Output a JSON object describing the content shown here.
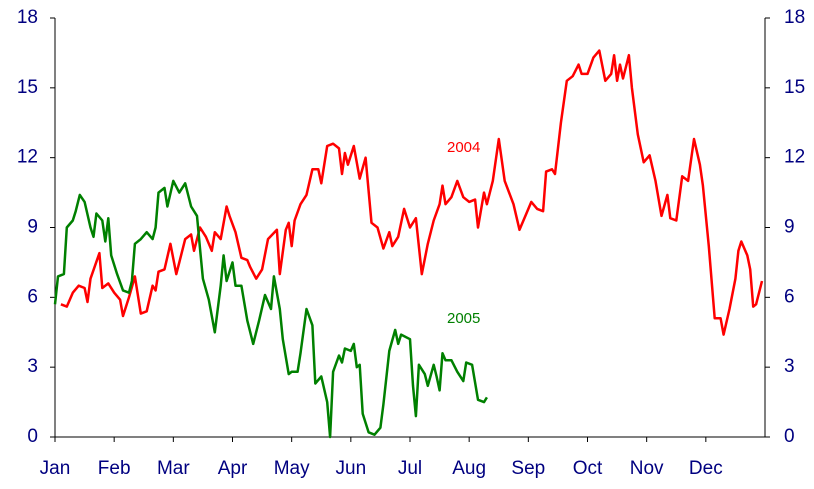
{
  "chart_data": {
    "type": "line",
    "xlim": [
      0,
      12
    ],
    "xticks": [
      {
        "value": 0,
        "label": "Jan"
      },
      {
        "value": 1,
        "label": "Feb"
      },
      {
        "value": 2,
        "label": "Mar"
      },
      {
        "value": 3,
        "label": "Apr"
      },
      {
        "value": 4,
        "label": "May"
      },
      {
        "value": 5,
        "label": "Jun"
      },
      {
        "value": 6,
        "label": "Jul"
      },
      {
        "value": 7,
        "label": "Aug"
      },
      {
        "value": 8,
        "label": "Sep"
      },
      {
        "value": 9,
        "label": "Oct"
      },
      {
        "value": 10,
        "label": "Nov"
      },
      {
        "value": 11,
        "label": "Dec"
      }
    ],
    "ylim": [
      0,
      18
    ],
    "yticks": [
      0,
      3,
      6,
      9,
      12,
      15,
      18
    ],
    "y2lim": [
      0,
      18
    ],
    "y2ticks": [
      0,
      3,
      6,
      9,
      12,
      15,
      18
    ],
    "grid": false,
    "series": [
      {
        "name": "2004",
        "color": "#ff0000",
        "x": [
          0.1,
          0.2,
          0.3,
          0.4,
          0.5,
          0.55,
          0.6,
          0.75,
          0.8,
          0.9,
          1.0,
          1.1,
          1.15,
          1.25,
          1.35,
          1.45,
          1.55,
          1.65,
          1.7,
          1.75,
          1.85,
          1.95,
          2.05,
          2.1,
          2.2,
          2.3,
          2.35,
          2.45,
          2.55,
          2.65,
          2.7,
          2.8,
          2.9,
          2.95,
          3.05,
          3.15,
          3.25,
          3.3,
          3.4,
          3.5,
          3.6,
          3.75,
          3.8,
          3.9,
          3.95,
          4.0,
          4.05,
          4.15,
          4.25,
          4.35,
          4.45,
          4.5,
          4.6,
          4.7,
          4.8,
          4.85,
          4.9,
          4.95,
          5.05,
          5.15,
          5.25,
          5.35,
          5.45,
          5.55,
          5.65,
          5.7,
          5.8,
          5.9,
          6.0,
          6.1,
          6.2,
          6.3,
          6.4,
          6.5,
          6.55,
          6.6,
          6.7,
          6.8,
          6.9,
          7.0,
          7.1,
          7.15,
          7.25,
          7.3,
          7.4,
          7.5,
          7.6,
          7.75,
          7.85,
          7.95,
          8.05,
          8.15,
          8.25,
          8.3,
          8.4,
          8.45,
          8.55,
          8.65,
          8.75,
          8.85,
          8.9,
          9.0,
          9.1,
          9.2,
          9.3,
          9.4,
          9.45,
          9.5,
          9.55,
          9.6,
          9.7,
          9.75,
          9.85,
          9.95,
          10.05,
          10.15,
          10.25,
          10.35,
          10.4,
          10.5,
          10.6,
          10.7,
          10.8,
          10.9,
          10.95,
          11.05,
          11.15,
          11.25,
          11.3,
          11.4,
          11.5,
          11.55,
          11.6,
          11.7,
          11.75,
          11.8,
          11.85,
          11.95
        ],
        "values": [
          5.7,
          5.6,
          6.2,
          6.5,
          6.4,
          5.8,
          6.8,
          7.9,
          6.4,
          6.6,
          6.2,
          5.9,
          5.2,
          6.0,
          6.9,
          5.3,
          5.4,
          6.5,
          6.3,
          7.1,
          7.2,
          8.3,
          7.0,
          7.5,
          8.5,
          8.7,
          8.0,
          9.0,
          8.6,
          8.0,
          8.8,
          8.5,
          9.9,
          9.5,
          8.8,
          7.7,
          7.6,
          7.3,
          6.8,
          7.2,
          8.5,
          8.9,
          7.0,
          8.9,
          9.2,
          8.2,
          9.3,
          10.0,
          10.4,
          11.5,
          11.5,
          10.9,
          12.5,
          12.6,
          12.4,
          11.3,
          12.2,
          11.7,
          12.5,
          11.1,
          12.0,
          9.2,
          9.0,
          8.1,
          8.8,
          8.2,
          8.6,
          9.8,
          9.0,
          9.4,
          7.0,
          8.3,
          9.3,
          10.0,
          10.8,
          10.0,
          10.3,
          11.0,
          10.3,
          10.1,
          10.2,
          9.0,
          10.5,
          10.0,
          11.0,
          12.8,
          11.0,
          10.0,
          8.9,
          9.5,
          10.1,
          9.8,
          9.7,
          11.4,
          11.5,
          11.3,
          13.5,
          15.3,
          15.5,
          16.0,
          15.6,
          15.6,
          16.3,
          16.6,
          15.3,
          15.6,
          16.4,
          15.3,
          16.0,
          15.4,
          16.4,
          15.0,
          13.0,
          11.8,
          12.1,
          11.0,
          9.5,
          10.4,
          9.4,
          9.3,
          11.2,
          11.0,
          12.8,
          11.7,
          10.8,
          8.2,
          5.1,
          5.1,
          4.4,
          5.5,
          6.8,
          8.0,
          8.4,
          7.8,
          7.2,
          5.6,
          5.7,
          6.7
        ]
      },
      {
        "name": "2005",
        "color": "#008000",
        "x": [
          0.0,
          0.05,
          0.15,
          0.2,
          0.3,
          0.35,
          0.42,
          0.5,
          0.6,
          0.65,
          0.7,
          0.8,
          0.85,
          0.9,
          0.95,
          1.05,
          1.15,
          1.25,
          1.3,
          1.35,
          1.45,
          1.55,
          1.65,
          1.7,
          1.75,
          1.85,
          1.9,
          2.0,
          2.1,
          2.2,
          2.3,
          2.4,
          2.45,
          2.5,
          2.6,
          2.7,
          2.8,
          2.85,
          2.9,
          3.0,
          3.05,
          3.15,
          3.25,
          3.35,
          3.45,
          3.55,
          3.65,
          3.7,
          3.8,
          3.85,
          3.95,
          4.0,
          4.1,
          4.15,
          4.25,
          4.35,
          4.4,
          4.5,
          4.6,
          4.65,
          4.7,
          4.8,
          4.85,
          4.9,
          5.0,
          5.05,
          5.1,
          5.15,
          5.2,
          5.3,
          5.4,
          5.5,
          5.55,
          5.65,
          5.75,
          5.8,
          5.85,
          6.0,
          6.05,
          6.1,
          6.15,
          6.25,
          6.3,
          6.4,
          6.45,
          6.5,
          6.55,
          6.6,
          6.7,
          6.8,
          6.9,
          6.95,
          7.05,
          7.15,
          7.25,
          7.3
        ],
        "values": [
          5.7,
          6.9,
          7.0,
          9.0,
          9.3,
          9.7,
          10.4,
          10.1,
          9.0,
          8.6,
          9.6,
          9.3,
          8.4,
          9.4,
          7.8,
          7.0,
          6.3,
          6.2,
          6.7,
          8.3,
          8.5,
          8.8,
          8.5,
          9.0,
          10.5,
          10.7,
          9.9,
          11.0,
          10.5,
          10.9,
          9.9,
          9.5,
          8.1,
          6.8,
          5.9,
          4.5,
          6.5,
          7.8,
          6.7,
          7.5,
          6.5,
          6.5,
          5.0,
          4.0,
          5.0,
          6.1,
          5.5,
          6.9,
          5.5,
          4.2,
          2.7,
          2.8,
          2.8,
          3.6,
          5.5,
          4.8,
          2.3,
          2.6,
          1.5,
          0.0,
          2.8,
          3.5,
          3.2,
          3.8,
          3.7,
          4.0,
          3.0,
          3.1,
          1.0,
          0.2,
          0.1,
          0.4,
          1.4,
          3.7,
          4.6,
          4.0,
          4.4,
          4.2,
          2.2,
          0.9,
          3.1,
          2.7,
          2.2,
          3.1,
          2.6,
          2.0,
          3.6,
          3.3,
          3.3,
          2.8,
          2.4,
          3.2,
          3.1,
          1.6,
          1.5,
          1.7
        ]
      }
    ]
  }
}
